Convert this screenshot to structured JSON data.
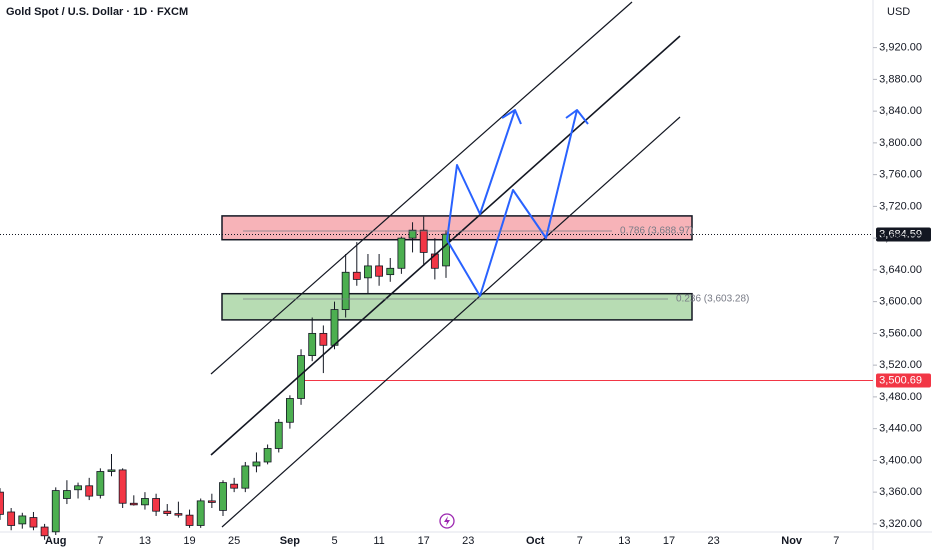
{
  "chart_data": {
    "type": "candlestick",
    "title": "Gold Spot / U.S. Dollar · 1D · FXCM",
    "currency": "USD",
    "categories": [
      null,
      null,
      null,
      null,
      null,
      "Aug",
      null,
      null,
      null,
      "7",
      null,
      null,
      null,
      "13",
      null,
      null,
      null,
      "19",
      null,
      null,
      null,
      "25",
      null,
      null,
      null,
      null,
      "Sep",
      null,
      null,
      null,
      "5",
      null,
      null,
      null,
      "11",
      null,
      null,
      null,
      "17",
      null,
      null,
      null,
      "23",
      null,
      null,
      null,
      null,
      null,
      "Oct",
      null,
      null,
      null,
      "7",
      null,
      null,
      null,
      "13",
      null,
      null,
      null,
      "17",
      null,
      null,
      null,
      "23",
      null,
      null,
      null,
      null,
      null,
      null,
      "Nov",
      null,
      null,
      null,
      "7"
    ],
    "open": [
      3360,
      3335,
      3320,
      3328,
      3316,
      3310,
      3352,
      3363,
      3368,
      3356,
      3386,
      3388,
      3346,
      3344,
      3352,
      3336,
      3333,
      3331,
      3318,
      3349,
      3337,
      3370,
      3365,
      3393,
      3398,
      3415,
      3448,
      3478,
      3532,
      3560,
      3545,
      3590,
      3637,
      3630,
      3645,
      3634,
      3642,
      3680,
      3690,
      3660,
      3645,
      null,
      null,
      null,
      null,
      null,
      null,
      null,
      null,
      null,
      null,
      null,
      null,
      null,
      null,
      null,
      null,
      null,
      null,
      null,
      null,
      null,
      null,
      null,
      null,
      null,
      null,
      null,
      null,
      null,
      null,
      null,
      null,
      null,
      null,
      null
    ],
    "high": [
      3365,
      3340,
      3334,
      3335,
      3320,
      3366,
      3375,
      3372,
      3378,
      3390,
      3408,
      3390,
      3356,
      3360,
      3358,
      3345,
      3348,
      3338,
      3352,
      3358,
      3375,
      3378,
      3398,
      3410,
      3420,
      3452,
      3482,
      3540,
      3580,
      3570,
      3600,
      3660,
      3675,
      3660,
      3660,
      3655,
      3682,
      3700,
      3707,
      3680,
      3690,
      null,
      null,
      null,
      null,
      null,
      null,
      null,
      null,
      null,
      null,
      null,
      null,
      null,
      null,
      null,
      null,
      null,
      null,
      null,
      null,
      null,
      null,
      null,
      null,
      null,
      null,
      null,
      null,
      null,
      null,
      null,
      null,
      null,
      null,
      null
    ],
    "low": [
      3325,
      3312,
      3314,
      3312,
      3300,
      3306,
      3345,
      3352,
      3350,
      3352,
      3380,
      3340,
      3343,
      3338,
      3330,
      3330,
      3328,
      3315,
      3315,
      3340,
      3330,
      3360,
      3360,
      3385,
      3395,
      3410,
      3440,
      3470,
      3525,
      3510,
      3540,
      3580,
      3620,
      3610,
      3620,
      3625,
      3635,
      3662,
      3645,
      3628,
      3630,
      null,
      null,
      null,
      null,
      null,
      null,
      null,
      null,
      null,
      null,
      null,
      null,
      null,
      null,
      null,
      null,
      null,
      null,
      null,
      null,
      null,
      null,
      null,
      null,
      null,
      null,
      null,
      null,
      null,
      null,
      null,
      null,
      null,
      null,
      null
    ],
    "close": [
      3332,
      3318,
      3330,
      3316,
      3305,
      3362,
      3362,
      3368,
      3355,
      3386,
      3388,
      3346,
      3344,
      3352,
      3336,
      3333,
      3331,
      3318,
      3349,
      3347,
      3372,
      3365,
      3393,
      3398,
      3415,
      3448,
      3478,
      3532,
      3560,
      3545,
      3590,
      3637,
      3628,
      3645,
      3632,
      3642,
      3680,
      3690,
      3662,
      3642,
      3685,
      null,
      null,
      null,
      null,
      null,
      null,
      null,
      null,
      null,
      null,
      null,
      null,
      null,
      null,
      null,
      null,
      null,
      null,
      null,
      null,
      null,
      null,
      null,
      null,
      null,
      null,
      null,
      null,
      null,
      null,
      null,
      null,
      null,
      null,
      null
    ],
    "up_color": "#4caf50",
    "down_color": "#f23645",
    "ylim": [
      3306,
      3980
    ],
    "yticks": [
      {
        "value": 3320,
        "label": "3,320.00"
      },
      {
        "value": 3360,
        "label": "3,360.00"
      },
      {
        "value": 3400,
        "label": "3,400.00"
      },
      {
        "value": 3440,
        "label": "3,440.00"
      },
      {
        "value": 3480,
        "label": "3,480.00"
      },
      {
        "value": 3520,
        "label": "3,520.00"
      },
      {
        "value": 3560,
        "label": "3,560.00"
      },
      {
        "value": 3600,
        "label": "3,600.00"
      },
      {
        "value": 3640,
        "label": "3,640.00"
      },
      {
        "value": 3680,
        "label": "3,680.00"
      },
      {
        "value": 3720,
        "label": "3,720.00"
      },
      {
        "value": 3760,
        "label": "3,760.00"
      },
      {
        "value": 3800,
        "label": "3,800.00"
      },
      {
        "value": 3840,
        "label": "3,840.00"
      },
      {
        "value": 3880,
        "label": "3,880.00"
      },
      {
        "value": 3920,
        "label": "3,920.00"
      }
    ],
    "zones": [
      {
        "top": 3708,
        "bottom": 3678,
        "color": "#f7b3b8"
      },
      {
        "top": 3610,
        "bottom": 3577,
        "color": "#b7dcb3"
      }
    ],
    "fib_levels": [
      {
        "value": 3688.97,
        "label": "0.786 (3,688.97)"
      },
      {
        "value": 3603.28,
        "label": "0.236 (3,603.28)"
      }
    ],
    "price_lines": [
      {
        "value": 3684.59,
        "label": "3,684.59",
        "color": "#131722"
      },
      {
        "value": 3500.69,
        "label": "3,500.69",
        "color": "#f23645"
      }
    ]
  }
}
